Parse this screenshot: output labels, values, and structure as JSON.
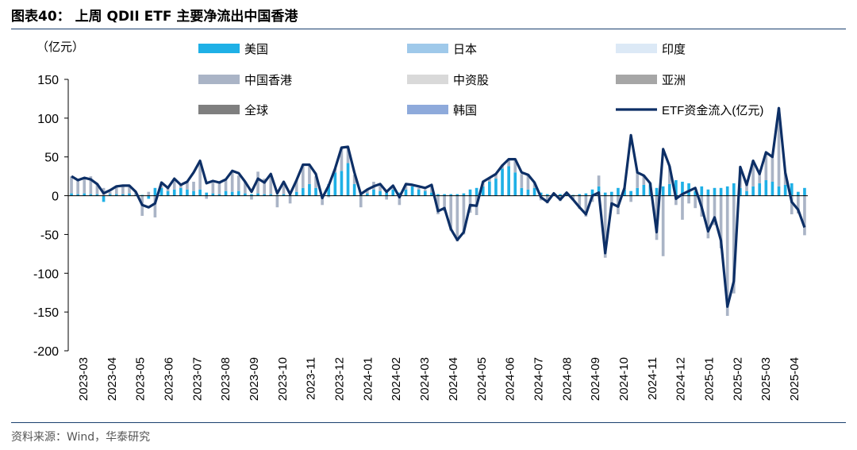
{
  "header": {
    "title": "图表40： 上周 QDII ETF 主要净流出中国香港"
  },
  "footer": {
    "source": "资料来源：Wind，华泰研究"
  },
  "colors": {
    "美国": "#1fb0e6",
    "日本": "#9fc9ea",
    "印度": "#dce9f6",
    "中国香港": "#aab4c6",
    "中资股": "#d9d9d9",
    "亚洲": "#a6a6a6",
    "全球": "#7f7f7f",
    "韩国": "#8eaadb",
    "line": "#0d2f66"
  },
  "chart_data": {
    "type": "bar+line",
    "title": "",
    "unit_label": "（亿元）",
    "ylim": [
      -200,
      150
    ],
    "yticks": [
      150,
      100,
      50,
      0,
      -50,
      -100,
      -150,
      -200
    ],
    "x_tick_labels": [
      "2023-03",
      "2023-04",
      "2023-05",
      "2023-06",
      "2023-07",
      "2023-08",
      "2023-09",
      "2023-10",
      "2023-11",
      "2023-12",
      "2024-01",
      "2024-02",
      "2024-03",
      "2024-04",
      "2024-05",
      "2024-06",
      "2024-07",
      "2024-08",
      "2024-09",
      "2024-10",
      "2024-11",
      "2024-12",
      "2025-01",
      "2025-02",
      "2025-03",
      "2025-04"
    ],
    "legend": [
      "美国",
      "日本",
      "印度",
      "中国香港",
      "中资股",
      "亚洲",
      "全球",
      "韩国",
      "ETF资金流入(亿元)"
    ],
    "line_name": "ETF资金流入(亿元)",
    "line_values": [
      25,
      20,
      23,
      21,
      15,
      3,
      7,
      12,
      13,
      13,
      5,
      -12,
      -15,
      -10,
      17,
      10,
      22,
      14,
      18,
      30,
      45,
      16,
      19,
      17,
      21,
      32,
      29,
      18,
      5,
      22,
      17,
      28,
      3,
      18,
      2,
      20,
      40,
      40,
      28,
      -3,
      13,
      35,
      62,
      63,
      30,
      2,
      8,
      12,
      15,
      5,
      13,
      -2,
      15,
      14,
      12,
      10,
      14,
      -20,
      -16,
      -43,
      -57,
      -47,
      -12,
      -13,
      18,
      23,
      28,
      39,
      47,
      47,
      30,
      27,
      17,
      -2,
      -8,
      3,
      -5,
      4,
      -5,
      -15,
      -24,
      0,
      4,
      -74,
      -10,
      -14,
      10,
      78,
      30,
      26,
      16,
      -47,
      60,
      38,
      -4,
      2,
      6,
      10,
      -15,
      -46,
      -28,
      -58,
      -143,
      -110,
      37,
      14,
      45,
      28,
      56,
      50,
      113,
      30,
      -8,
      -18,
      -41
    ],
    "stack_order": [
      "美国",
      "日本",
      "印度",
      "中国香港",
      "中资股",
      "亚洲",
      "全球",
      "韩国"
    ],
    "bars": [
      {
        "美国": 3,
        "中国香港": 22
      },
      {
        "美国": 2,
        "中国香港": 18
      },
      {
        "美国": 3,
        "中国香港": 20
      },
      {
        "美国": 2,
        "中国香港": 23
      },
      {
        "美国": 2,
        "中国香港": 14
      },
      {
        "美国": -8,
        "中国香港": 10
      },
      {
        "美国": 2,
        "中国香港": 3
      },
      {
        "美国": 2,
        "中国香港": 10
      },
      {
        "美国": 2,
        "中国香港": 10
      },
      {
        "美国": 3,
        "中国香港": 10
      },
      {
        "美国": 1,
        "中国香港": 3
      },
      {
        "美国": 1,
        "中国香港": -26
      },
      {
        "美国": -4,
        "中国香港": 5
      },
      {
        "美国": 10,
        "中国香港": -28
      },
      {
        "美国": 10,
        "中国香港": 6
      },
      {
        "美国": 6,
        "中国香港": 4
      },
      {
        "美国": 8,
        "中国香港": 14
      },
      {
        "美国": 10,
        "中国香港": 4
      },
      {
        "美国": 8,
        "中国香港": 10
      },
      {
        "美国": 6,
        "中国香港": 12
      },
      {
        "美国": 8,
        "中国香港": 32
      },
      {
        "美国": 4,
        "中国香港": -4
      },
      {
        "美国": 3,
        "中国香港": 14
      },
      {
        "美国": 2,
        "中国香港": 15
      },
      {
        "美国": 6,
        "中国香港": 14
      },
      {
        "美国": 5,
        "中国香港": 25
      },
      {
        "美国": 6,
        "中国香港": 20
      },
      {
        "美国": 3,
        "中国香港": 15
      },
      {
        "美国": 2,
        "中国香港": -5
      },
      {
        "美国": 3,
        "中国香港": 28
      },
      {
        "美国": 2,
        "中国香港": 20
      },
      {
        "美国": 2,
        "中国香港": 25
      },
      {
        "美国": 1,
        "中国香港": -15
      },
      {
        "美国": 2,
        "中国香港": 15
      },
      {
        "美国": 1,
        "中国香港": -10
      },
      {
        "美国": 5,
        "中国香港": 15
      },
      {
        "美国": 10,
        "中国香港": 28
      },
      {
        "美国": 15,
        "中国香港": 25
      },
      {
        "美国": 10,
        "中国香港": 15
      },
      {
        "美国": 0,
        "中国香港": -12
      },
      {
        "美国": 15,
        "中国香港": -2
      },
      {
        "美国": 30,
        "中国香港": 5
      },
      {
        "美国": 32,
        "中国香港": 30
      },
      {
        "美国": 42,
        "中国香港": 20
      },
      {
        "美国": 15,
        "中国香港": 12
      },
      {
        "美国": 2,
        "中国香港": -15
      },
      {
        "美国": 3,
        "中国香港": 5
      },
      {
        "美国": 8,
        "中国香港": 10
      },
      {
        "美国": 6,
        "中国香港": 8
      },
      {
        "美国": 4,
        "中国香港": -5
      },
      {
        "美国": 8,
        "中国香港": 2
      },
      {
        "美国": 4,
        "中国香港": -12
      },
      {
        "美国": 8,
        "中国香港": 6
      },
      {
        "美国": 12,
        "中国香港": 2
      },
      {
        "美国": 8,
        "中国香港": 2
      },
      {
        "美国": 6,
        "中国香港": 2
      },
      {
        "美国": 4,
        "中国香港": 10
      },
      {
        "美国": 2,
        "中国香港": -24
      },
      {
        "美国": 2,
        "中国香港": -20
      },
      {
        "美国": 2,
        "中国香港": -45
      },
      {
        "美国": 2,
        "中国香港": -59
      },
      {
        "美国": 3,
        "中国香港": -50
      },
      {
        "美国": 8,
        "中国香港": -22
      },
      {
        "美国": 10,
        "中国香港": -25
      },
      {
        "美国": 12,
        "中国香港": 6
      },
      {
        "美国": 18,
        "中国香港": 5
      },
      {
        "美国": 22,
        "中国香港": 6
      },
      {
        "美国": 35,
        "中国香港": 5
      },
      {
        "美国": 38,
        "中国香港": 8
      },
      {
        "美国": 30,
        "中国香港": 15
      },
      {
        "美国": 10,
        "中国香港": 18
      },
      {
        "美国": 8,
        "中国香港": 20
      },
      {
        "美国": 10,
        "中国香港": 7
      },
      {
        "美国": 4,
        "中国香港": -6
      },
      {
        "美国": 2,
        "中国香港": -10
      },
      {
        "美国": 2,
        "中国香港": 1
      },
      {
        "美国": 2,
        "中国香港": -7
      },
      {
        "美国": 3,
        "中国香港": 1
      },
      {
        "美国": 1,
        "中国香港": -6
      },
      {
        "美国": 2,
        "中国香港": -17
      },
      {
        "美国": 3,
        "中国香港": -27
      },
      {
        "美国": 8,
        "中国香港": -8
      },
      {
        "美国": 12,
        "中国香港": 14
      },
      {
        "美国": 4,
        "中国香港": -80
      },
      {
        "美国": 5,
        "中国香港": -15
      },
      {
        "美国": 10,
        "中国香港": -24
      },
      {
        "美国": 8,
        "中国香港": 2
      },
      {
        "美国": 6,
        "中国香港": -8
      },
      {
        "美国": 10,
        "中国香港": 20
      },
      {
        "美国": 14,
        "中国香港": 12
      },
      {
        "美国": 16,
        "中国香港": 0
      },
      {
        "美国": 10,
        "中国香港": -57
      },
      {
        "美国": 12,
        "中国香港": -78
      },
      {
        "美国": 15,
        "中国香港": 23
      },
      {
        "美国": 20,
        "中国香港": -12
      },
      {
        "美国": 18,
        "中国香港": -31
      },
      {
        "美国": 16,
        "中国香港": -10
      },
      {
        "美国": 6,
        "中国香港": -16
      },
      {
        "美国": 12,
        "中国香港": -27
      },
      {
        "美国": 8,
        "中国香港": -55
      },
      {
        "美国": 10,
        "中国香港": -38
      },
      {
        "美国": 10,
        "中国香港": -68
      },
      {
        "美国": 12,
        "中国香港": -155
      },
      {
        "美国": 16,
        "中国香港": -126
      },
      {
        "美国": 10,
        "中国香港": 27
      },
      {
        "美国": 6,
        "中国香港": 8
      },
      {
        "美国": 12,
        "中国香港": 33
      },
      {
        "美国": 16,
        "中国香港": 12
      },
      {
        "美国": 20,
        "中国香港": 36
      },
      {
        "美国": 18,
        "中国香港": 32
      },
      {
        "美国": 12,
        "中国香港": 101
      },
      {
        "美国": 14,
        "中国香港": 16
      },
      {
        "美国": 16,
        "中国香港": -24
      },
      {
        "美国": 5,
        "中国香港": -23
      },
      {
        "美国": 10,
        "中国香港": -51
      }
    ]
  }
}
